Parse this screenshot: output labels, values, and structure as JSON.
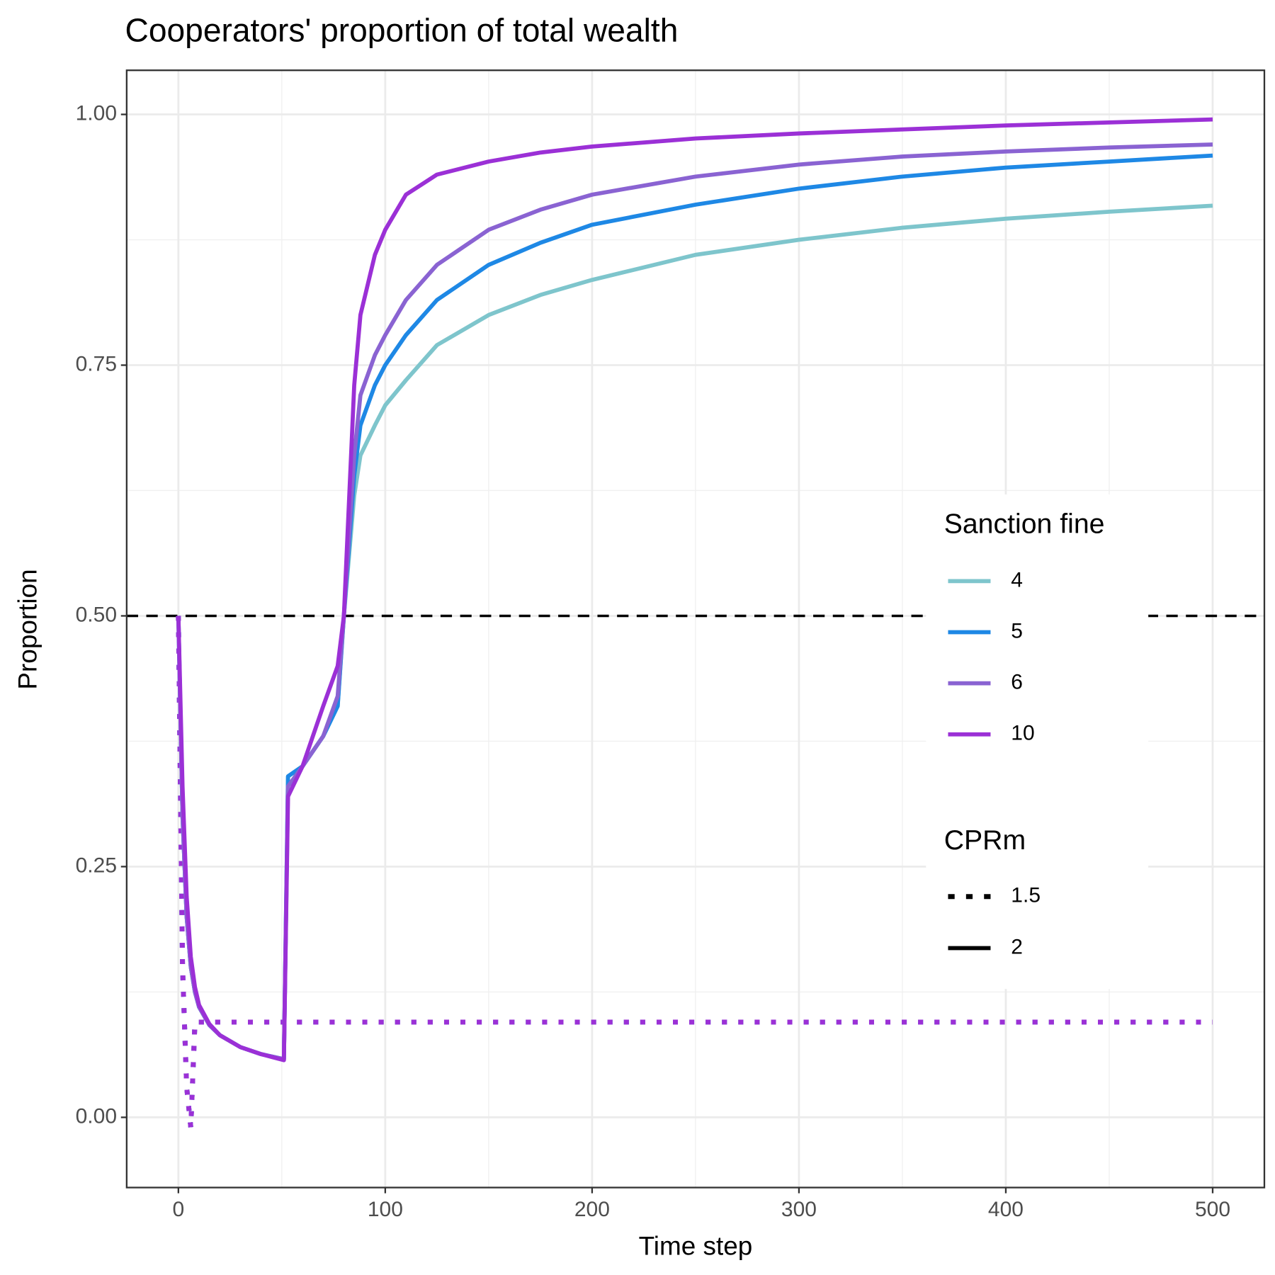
{
  "chart_data": {
    "type": "line",
    "title": "Cooperators' proportion of total wealth",
    "x_label": "Time step",
    "y_label": "Proportion",
    "x": [
      0,
      2,
      4,
      6,
      8,
      10,
      15,
      20,
      30,
      40,
      51,
      53,
      60,
      70,
      77,
      80,
      85,
      88,
      95,
      100,
      110,
      125,
      150,
      175,
      200,
      250,
      300,
      350,
      400,
      450,
      500
    ],
    "series": [
      {
        "color": "#7ec5cc",
        "linetype": "dotted",
        "values": [
          0.5,
          0.15,
          0.03,
          -0.01,
          0.095,
          0.095,
          0.095,
          0.095,
          0.095,
          0.095,
          0.095,
          0.095,
          0.095,
          0.095,
          0.095,
          0.095,
          0.095,
          0.095,
          0.095,
          0.095,
          0.095,
          0.095,
          0.095,
          0.095,
          0.095,
          0.095,
          0.095,
          0.095,
          0.095,
          0.095,
          0.095
        ]
      },
      {
        "color": "#1e88e5",
        "linetype": "dotted",
        "values": [
          0.5,
          0.15,
          0.03,
          -0.01,
          0.095,
          0.095,
          0.095,
          0.095,
          0.095,
          0.095,
          0.095,
          0.095,
          0.095,
          0.095,
          0.095,
          0.095,
          0.095,
          0.095,
          0.095,
          0.095,
          0.095,
          0.095,
          0.095,
          0.095,
          0.095,
          0.095,
          0.095,
          0.095,
          0.095,
          0.095,
          0.095
        ]
      },
      {
        "color": "#8a63d2",
        "linetype": "dotted",
        "values": [
          0.5,
          0.15,
          0.03,
          -0.01,
          0.095,
          0.095,
          0.095,
          0.095,
          0.095,
          0.095,
          0.095,
          0.095,
          0.095,
          0.095,
          0.095,
          0.095,
          0.095,
          0.095,
          0.095,
          0.095,
          0.095,
          0.095,
          0.095,
          0.095,
          0.095,
          0.095,
          0.095,
          0.095,
          0.095,
          0.095,
          0.095
        ]
      },
      {
        "color": "#9b30d6",
        "linetype": "dotted",
        "values": [
          0.5,
          0.15,
          0.03,
          -0.01,
          0.095,
          0.095,
          0.095,
          0.095,
          0.095,
          0.095,
          0.095,
          0.095,
          0.095,
          0.095,
          0.095,
          0.095,
          0.095,
          0.095,
          0.095,
          0.095,
          0.095,
          0.095,
          0.095,
          0.095,
          0.095,
          0.095,
          0.095,
          0.095,
          0.095,
          0.095,
          0.095
        ]
      },
      {
        "color": "#7ec5cc",
        "linetype": "solid",
        "values": [
          0.5,
          0.3,
          0.2,
          0.15,
          0.125,
          0.11,
          0.092,
          0.082,
          0.07,
          0.063,
          0.058,
          0.34,
          0.35,
          0.38,
          0.41,
          0.5,
          0.62,
          0.66,
          0.69,
          0.71,
          0.735,
          0.77,
          0.8,
          0.82,
          0.835,
          0.86,
          0.875,
          0.887,
          0.896,
          0.903,
          0.909
        ]
      },
      {
        "color": "#1e88e5",
        "linetype": "solid",
        "values": [
          0.5,
          0.3,
          0.2,
          0.15,
          0.125,
          0.11,
          0.092,
          0.082,
          0.07,
          0.063,
          0.058,
          0.34,
          0.35,
          0.38,
          0.41,
          0.5,
          0.64,
          0.69,
          0.73,
          0.75,
          0.78,
          0.815,
          0.85,
          0.872,
          0.89,
          0.91,
          0.926,
          0.938,
          0.947,
          0.953,
          0.959
        ]
      },
      {
        "color": "#8a63d2",
        "linetype": "solid",
        "values": [
          0.5,
          0.3,
          0.2,
          0.15,
          0.125,
          0.11,
          0.092,
          0.082,
          0.07,
          0.063,
          0.058,
          0.33,
          0.35,
          0.38,
          0.42,
          0.5,
          0.66,
          0.72,
          0.76,
          0.78,
          0.815,
          0.85,
          0.885,
          0.905,
          0.92,
          0.938,
          0.95,
          0.958,
          0.963,
          0.967,
          0.97
        ]
      },
      {
        "color": "#9b30d6",
        "linetype": "solid",
        "values": [
          0.5,
          0.33,
          0.22,
          0.16,
          0.13,
          0.112,
          0.093,
          0.082,
          0.07,
          0.063,
          0.057,
          0.32,
          0.35,
          0.41,
          0.45,
          0.5,
          0.73,
          0.8,
          0.86,
          0.885,
          0.92,
          0.94,
          0.953,
          0.962,
          0.968,
          0.976,
          0.981,
          0.985,
          0.989,
          0.992,
          0.995
        ]
      }
    ],
    "hline": {
      "value": 0.5,
      "dash": "dashed"
    },
    "xlim": [
      -25,
      525
    ],
    "ylim": [
      -0.07,
      1.044
    ],
    "xticks": [
      0,
      100,
      200,
      300,
      400,
      500
    ],
    "yticks": [
      {
        "value": 0,
        "label": "0.00"
      },
      {
        "value": 0.25,
        "label": "0.25"
      },
      {
        "value": 0.5,
        "label": "0.50"
      },
      {
        "value": 0.75,
        "label": "0.75"
      },
      {
        "value": 1,
        "label": "1.00"
      }
    ],
    "xminor": [
      50,
      150,
      250,
      350,
      450
    ],
    "yminor": [
      0.125,
      0.375,
      0.625,
      0.875
    ],
    "grid": true,
    "legend": {
      "position": "right",
      "color": {
        "title": "Sanction fine",
        "labels": [
          "4",
          "5",
          "6",
          "10"
        ],
        "colors": [
          "#7ec5cc",
          "#1e88e5",
          "#8a63d2",
          "#9b30d6"
        ]
      },
      "linetype": {
        "title": "CPRm",
        "labels": [
          "1.5",
          "2"
        ],
        "linetypes": [
          "dotted",
          "solid"
        ]
      }
    }
  }
}
